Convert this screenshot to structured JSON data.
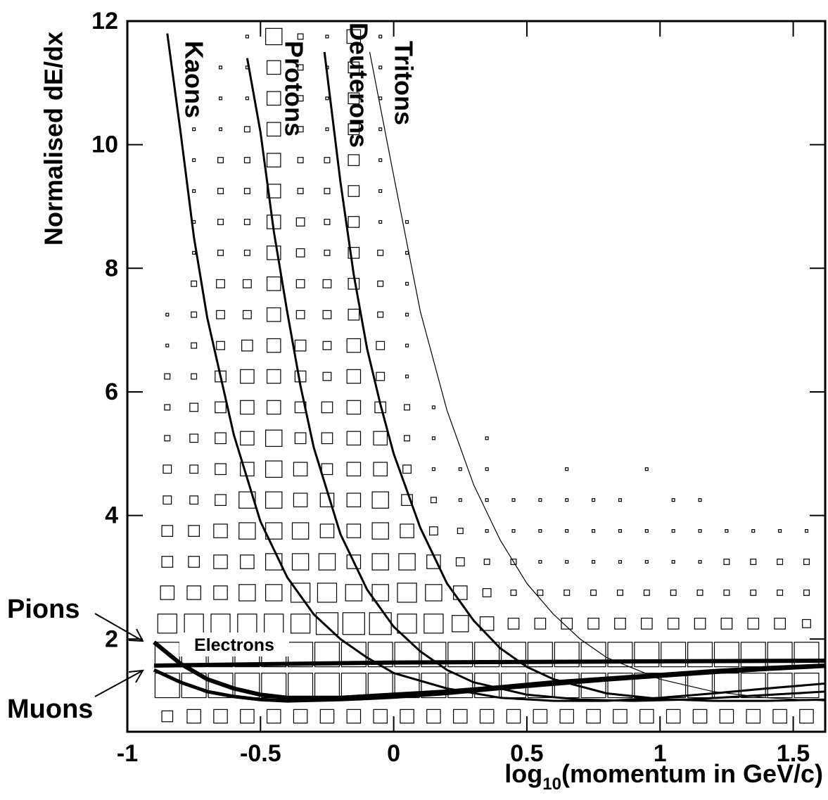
{
  "chart_data": {
    "type": "hist2d",
    "ylabel": "Normalised dE/dx",
    "xlabel": [
      "log",
      "10",
      "(momentum in GeV/c)"
    ],
    "xlim": [
      -1,
      1.62
    ],
    "ylim": [
      0.5,
      12
    ],
    "xticks": [
      -1,
      -0.5,
      0,
      0.5,
      1,
      1.5
    ],
    "yticks": [
      2,
      4,
      6,
      8,
      10,
      12
    ],
    "histogram": {
      "xbins": [
        -0.9,
        -0.8,
        -0.7,
        -0.6,
        -0.5,
        -0.4,
        -0.3,
        -0.2,
        -0.1,
        0,
        0.1,
        0.2,
        0.3,
        0.4,
        0.5,
        0.6,
        0.7,
        0.8,
        0.9,
        1,
        1.1,
        1.2,
        1.3,
        1.4,
        1.5,
        1.6
      ],
      "ybins": [
        0.5,
        1,
        1.5,
        2,
        2.5,
        3,
        3.5,
        4,
        4.5,
        5,
        5.5,
        6,
        6.5,
        7,
        7.5,
        8,
        8.5,
        9,
        9.5,
        10,
        10.5,
        11,
        11.5,
        12
      ],
      "counts": [
        [
          4,
          5,
          5,
          5,
          5,
          5,
          5,
          5,
          5,
          5,
          5,
          5,
          5,
          5,
          5,
          5,
          5,
          5,
          5,
          5,
          5,
          5,
          5,
          5,
          5
        ],
        [
          9,
          9,
          9,
          9,
          9,
          9,
          9,
          9,
          9,
          9,
          9,
          9,
          9,
          9,
          9,
          9,
          9,
          9,
          9,
          9,
          9,
          9,
          9,
          9,
          9
        ],
        [
          9,
          9,
          9,
          9,
          9,
          9,
          9,
          9,
          9,
          9,
          9,
          9,
          9,
          9,
          9,
          9,
          9,
          9,
          9,
          9,
          9,
          9,
          9,
          9,
          9
        ],
        [
          7,
          7,
          7,
          7,
          7,
          7,
          8,
          8,
          8,
          7,
          7,
          6,
          5,
          4,
          4,
          4,
          4,
          4,
          4,
          4,
          4,
          4,
          4,
          4,
          3
        ],
        [
          5,
          5,
          5,
          6,
          6,
          7,
          7,
          6,
          6,
          7,
          6,
          5,
          3,
          2,
          2,
          2,
          2,
          2,
          2,
          2,
          2,
          2,
          2,
          2,
          2
        ],
        [
          4,
          4,
          5,
          5,
          6,
          6,
          6,
          5,
          6,
          6,
          5,
          3,
          2,
          2,
          1,
          1,
          1,
          1,
          1,
          1,
          1,
          2,
          2,
          2,
          2
        ],
        [
          4,
          4,
          5,
          6,
          6,
          6,
          5,
          5,
          6,
          5,
          3,
          2,
          1,
          1,
          1,
          1,
          1,
          1,
          1,
          1,
          1,
          1,
          1,
          1,
          1
        ],
        [
          3,
          3,
          4,
          6,
          6,
          5,
          5,
          5,
          6,
          4,
          2,
          1,
          1,
          1,
          1,
          1,
          1,
          1,
          0,
          1,
          1,
          0,
          0,
          0,
          0
        ],
        [
          3,
          3,
          4,
          5,
          6,
          5,
          4,
          5,
          5,
          3,
          1,
          1,
          1,
          0,
          0,
          1,
          0,
          0,
          1,
          0,
          0,
          0,
          0,
          0,
          0
        ],
        [
          2,
          3,
          4,
          5,
          6,
          4,
          4,
          5,
          5,
          2,
          1,
          0,
          1,
          0,
          0,
          0,
          0,
          0,
          0,
          0,
          0,
          0,
          0,
          0,
          0
        ],
        [
          2,
          3,
          4,
          5,
          5,
          4,
          4,
          5,
          4,
          2,
          1,
          0,
          0,
          0,
          0,
          0,
          0,
          0,
          0,
          0,
          0,
          0,
          0,
          0,
          0
        ],
        [
          2,
          2,
          4,
          5,
          5,
          4,
          3,
          5,
          3,
          1,
          0,
          0,
          0,
          0,
          0,
          0,
          0,
          0,
          0,
          0,
          0,
          0,
          0,
          0,
          0
        ],
        [
          1,
          2,
          3,
          4,
          5,
          4,
          3,
          5,
          3,
          1,
          0,
          0,
          0,
          0,
          0,
          0,
          0,
          0,
          0,
          0,
          0,
          0,
          0,
          0,
          0
        ],
        [
          1,
          2,
          3,
          3,
          5,
          3,
          3,
          4,
          2,
          1,
          0,
          0,
          0,
          0,
          0,
          0,
          0,
          0,
          0,
          0,
          0,
          0,
          0,
          0,
          0
        ],
        [
          0,
          2,
          3,
          3,
          5,
          3,
          3,
          4,
          2,
          1,
          0,
          0,
          0,
          0,
          0,
          0,
          0,
          0,
          0,
          0,
          0,
          0,
          0,
          0,
          0
        ],
        [
          0,
          1,
          2,
          2,
          5,
          3,
          2,
          4,
          2,
          1,
          0,
          0,
          0,
          0,
          0,
          0,
          0,
          0,
          0,
          0,
          0,
          0,
          0,
          0,
          0
        ],
        [
          0,
          1,
          2,
          2,
          5,
          3,
          2,
          4,
          1,
          1,
          0,
          0,
          0,
          0,
          0,
          0,
          0,
          0,
          0,
          0,
          0,
          0,
          0,
          0,
          0
        ],
        [
          0,
          1,
          2,
          2,
          5,
          2,
          2,
          4,
          1,
          0,
          0,
          0,
          0,
          0,
          0,
          0,
          0,
          0,
          0,
          0,
          0,
          0,
          0,
          0,
          0
        ],
        [
          0,
          1,
          2,
          2,
          5,
          2,
          2,
          4,
          1,
          0,
          0,
          0,
          0,
          0,
          0,
          0,
          0,
          0,
          0,
          0,
          0,
          0,
          0,
          0,
          0
        ],
        [
          0,
          1,
          1,
          2,
          5,
          2,
          1,
          4,
          1,
          0,
          0,
          0,
          0,
          0,
          0,
          0,
          0,
          0,
          0,
          0,
          0,
          0,
          0,
          0,
          0
        ],
        [
          0,
          0,
          1,
          1,
          5,
          2,
          1,
          4,
          1,
          0,
          0,
          0,
          0,
          0,
          0,
          0,
          0,
          0,
          0,
          0,
          0,
          0,
          0,
          0,
          0
        ],
        [
          0,
          0,
          1,
          1,
          5,
          2,
          1,
          4,
          1,
          0,
          0,
          0,
          0,
          0,
          0,
          0,
          0,
          0,
          0,
          0,
          0,
          0,
          0,
          0,
          0
        ],
        [
          0,
          0,
          0,
          1,
          6,
          2,
          1,
          5,
          1,
          0,
          0,
          0,
          0,
          0,
          0,
          0,
          0,
          0,
          0,
          0,
          0,
          0,
          0,
          0,
          0
        ]
      ]
    },
    "series": [
      {
        "name": "Kaons",
        "color": "#000000",
        "line_width": 3,
        "x": [
          -0.85,
          -0.8,
          -0.75,
          -0.7,
          -0.6,
          -0.5,
          -0.4,
          -0.3,
          -0.2,
          -0.1,
          0,
          0.2,
          0.4,
          0.6,
          0.8,
          1.0,
          1.2,
          1.4,
          1.62
        ],
        "values": [
          11.8,
          10.2,
          8.5,
          7.2,
          5.3,
          3.9,
          3.0,
          2.4,
          2.0,
          1.7,
          1.45,
          1.2,
          1.05,
          1.0,
          1.0,
          1.05,
          1.12,
          1.2,
          1.28
        ]
      },
      {
        "name": "Protons",
        "color": "#000000",
        "line_width": 3,
        "x": [
          -0.55,
          -0.5,
          -0.45,
          -0.4,
          -0.35,
          -0.3,
          -0.2,
          -0.1,
          0,
          0.1,
          0.2,
          0.3,
          0.5,
          0.7,
          0.9,
          1.1,
          1.3,
          1.62
        ],
        "values": [
          11.4,
          10.2,
          8.6,
          7.3,
          6.1,
          5.1,
          3.7,
          2.8,
          2.2,
          1.8,
          1.5,
          1.3,
          1.1,
          1.02,
          1.0,
          1.02,
          1.07,
          1.15
        ]
      },
      {
        "name": "Deuterons",
        "color": "#000000",
        "line_width": 3,
        "x": [
          -0.26,
          -0.2,
          -0.15,
          -0.1,
          -0.05,
          0,
          0.1,
          0.2,
          0.3,
          0.4,
          0.5,
          0.6,
          0.8,
          1.0,
          1.2,
          1.4,
          1.62
        ],
        "values": [
          11.5,
          9.4,
          7.9,
          6.7,
          5.8,
          5.0,
          3.8,
          2.9,
          2.3,
          1.85,
          1.55,
          1.35,
          1.12,
          1.03,
          1.0,
          1.0,
          1.02
        ]
      },
      {
        "name": "Tritons",
        "color": "#000000",
        "line_width": 1.2,
        "x": [
          -0.09,
          0,
          0.1,
          0.2,
          0.3,
          0.4,
          0.5,
          0.6,
          0.7,
          0.8,
          1.0,
          1.2,
          1.4,
          1.62
        ],
        "values": [
          11.5,
          9.5,
          7.3,
          5.7,
          4.5,
          3.6,
          2.9,
          2.4,
          2.0,
          1.7,
          1.35,
          1.15,
          1.05,
          1.0
        ]
      },
      {
        "name": "Pions",
        "color": "#000000",
        "line_width": 6,
        "x": [
          -0.9,
          -0.8,
          -0.7,
          -0.6,
          -0.5,
          -0.4,
          -0.2,
          0,
          0.2,
          0.4,
          0.6,
          0.8,
          1.0,
          1.2,
          1.4,
          1.62
        ],
        "values": [
          1.95,
          1.6,
          1.35,
          1.2,
          1.1,
          1.05,
          1.05,
          1.1,
          1.15,
          1.22,
          1.3,
          1.36,
          1.42,
          1.48,
          1.53,
          1.57
        ]
      },
      {
        "name": "Muons",
        "color": "#000000",
        "line_width": 5,
        "x": [
          -0.9,
          -0.8,
          -0.7,
          -0.6,
          -0.5,
          -0.4,
          -0.2,
          0,
          0.2,
          0.4,
          0.6,
          0.8,
          1.0,
          1.2,
          1.4,
          1.62
        ],
        "values": [
          1.5,
          1.3,
          1.15,
          1.07,
          1.02,
          1.0,
          1.02,
          1.06,
          1.12,
          1.2,
          1.27,
          1.34,
          1.4,
          1.46,
          1.51,
          1.56
        ]
      },
      {
        "name": "Electrons",
        "color": "#000000",
        "line_width": 6,
        "x": [
          -0.9,
          0,
          0.5,
          1.0,
          1.62
        ],
        "values": [
          1.57,
          1.62,
          1.63,
          1.64,
          1.65
        ]
      }
    ]
  }
}
